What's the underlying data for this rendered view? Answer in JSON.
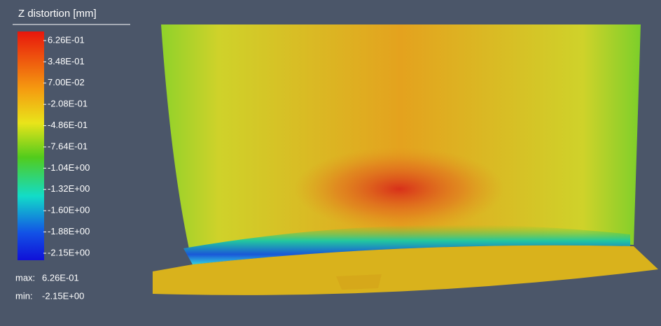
{
  "legend": {
    "title": "Z distortion [mm]",
    "ticks": [
      "6.26E-01",
      "3.48E-01",
      "7.00E-02",
      "-2.08E-01",
      "-4.86E-01",
      "-7.64E-01",
      "-1.04E+00",
      "-1.32E+00",
      "-1.60E+00",
      "-1.88E+00",
      "-2.15E+00"
    ],
    "max": {
      "label": "max:",
      "value": "6.26E-01"
    },
    "min": {
      "label": "min:",
      "value": "-2.15E+00"
    }
  }
}
